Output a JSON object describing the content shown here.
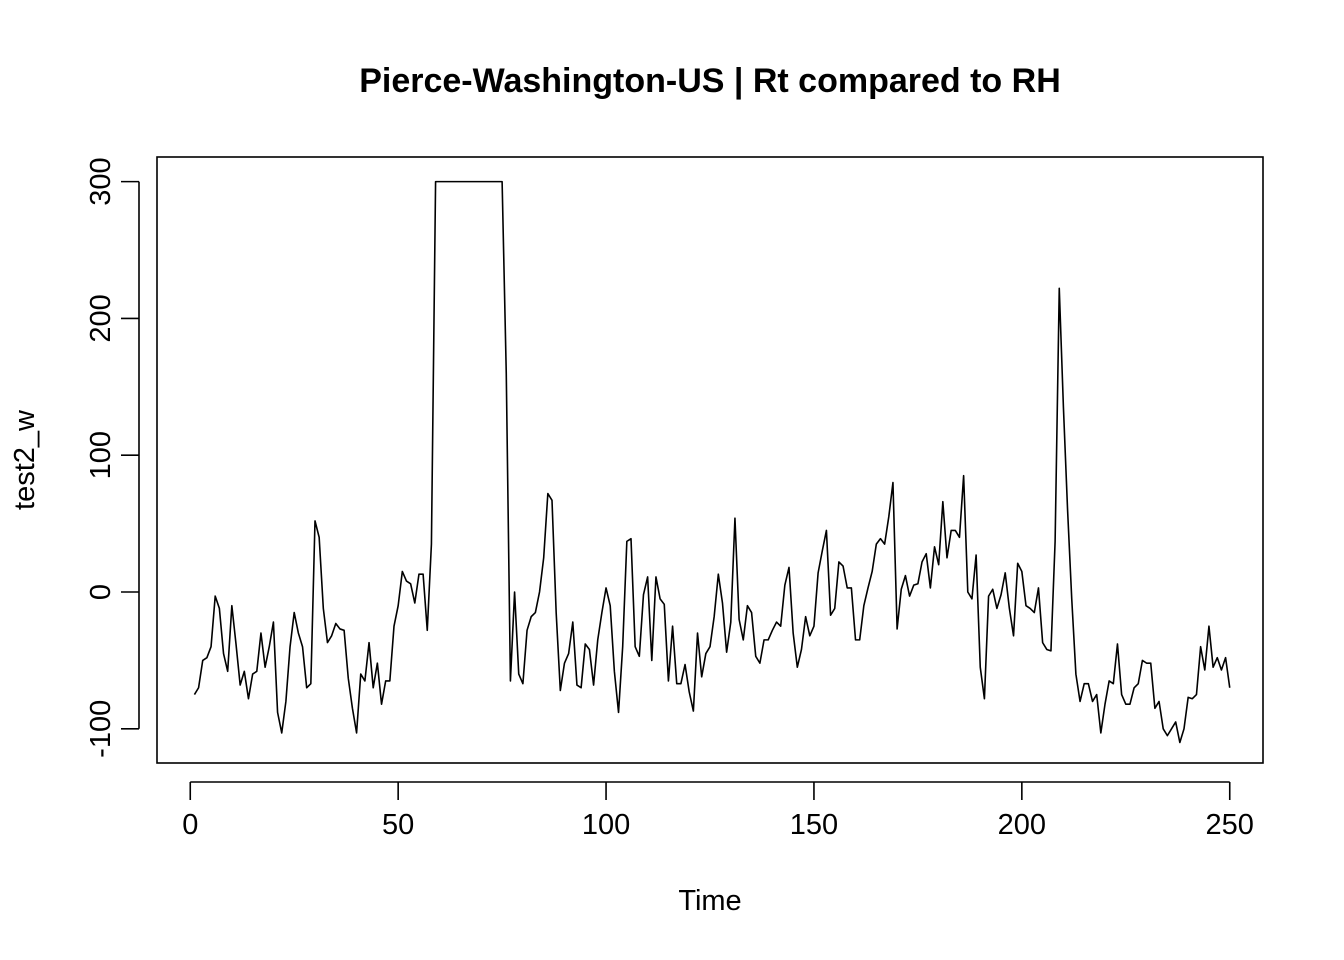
{
  "chart_data": {
    "type": "line",
    "title": "Pierce-Washington-US | Rt compared to RH",
    "xlabel": "Time",
    "ylabel": "test2_w",
    "xlim": [
      -8,
      258
    ],
    "ylim": [
      -125,
      318
    ],
    "x_ticks": [
      0,
      50,
      100,
      150,
      200,
      250
    ],
    "y_ticks": [
      -100,
      0,
      100,
      200,
      300
    ],
    "grid": false,
    "legend": "none",
    "line_color": "#000000",
    "x_start": 1,
    "values": [
      -75,
      -70,
      -50,
      -48,
      -40,
      -3,
      -12,
      -45,
      -58,
      -10,
      -38,
      -68,
      -58,
      -78,
      -60,
      -58,
      -30,
      -55,
      -40,
      -22,
      -88,
      -103,
      -80,
      -40,
      -15,
      -30,
      -40,
      -70,
      -67,
      52,
      40,
      -12,
      -37,
      -32,
      -23,
      -27,
      -28,
      -63,
      -85,
      -103,
      -60,
      -65,
      -37,
      -70,
      -52,
      -82,
      -65,
      -65,
      -25,
      -10,
      15,
      8,
      6,
      -8,
      13,
      13,
      -28,
      35,
      300,
      300,
      300,
      300,
      300,
      300,
      300,
      300,
      300,
      300,
      300,
      300,
      300,
      300,
      300,
      300,
      300,
      160,
      -65,
      0,
      -60,
      -67,
      -28,
      -18,
      -15,
      0,
      25,
      72,
      67,
      -15,
      -72,
      -52,
      -45,
      -22,
      -68,
      -70,
      -38,
      -42,
      -68,
      -35,
      -15,
      3,
      -10,
      -58,
      -88,
      -40,
      37,
      39,
      -40,
      -47,
      -2,
      11,
      -50,
      11,
      -5,
      -9,
      -65,
      -25,
      -67,
      -67,
      -53,
      -73,
      -87,
      -30,
      -62,
      -45,
      -40,
      -18,
      13,
      -8,
      -44,
      -22,
      54,
      -20,
      -35,
      -10,
      -15,
      -47,
      -52,
      -35,
      -35,
      -28,
      -22,
      -25,
      5,
      18,
      -30,
      -55,
      -42,
      -18,
      -32,
      -25,
      14,
      30,
      45,
      -17,
      -12,
      22,
      19,
      3,
      3,
      -35,
      -35,
      -10,
      3,
      15,
      35,
      39,
      35,
      55,
      80,
      -27,
      2,
      12,
      -3,
      5,
      6,
      22,
      28,
      3,
      33,
      20,
      66,
      25,
      45,
      45,
      40,
      85,
      0,
      -5,
      27,
      -55,
      -78,
      -3,
      2,
      -12,
      -2,
      14,
      -12,
      -32,
      21,
      15,
      -10,
      -12,
      -15,
      3,
      -37,
      -42,
      -43,
      37,
      222,
      135,
      60,
      -5,
      -60,
      -80,
      -67,
      -67,
      -80,
      -75,
      -103,
      -82,
      -65,
      -67,
      -38,
      -75,
      -82,
      -82,
      -70,
      -67,
      -50,
      -52,
      -52,
      -85,
      -80,
      -100,
      -105,
      -100,
      -95,
      -110,
      -100,
      -77,
      -78,
      -75,
      -40,
      -57,
      -25,
      -55,
      -48,
      -57,
      -48,
      -70
    ]
  }
}
